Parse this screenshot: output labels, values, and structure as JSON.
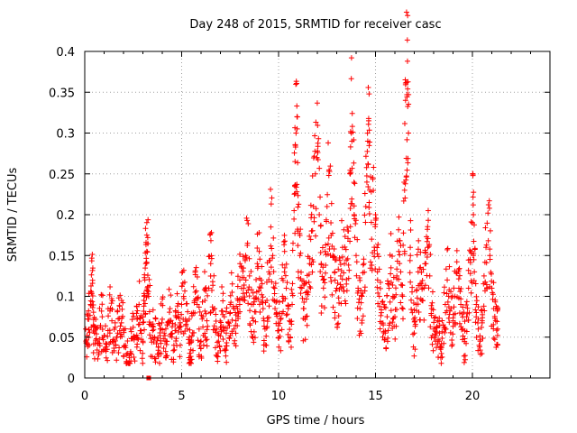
{
  "chart_data": {
    "type": "scatter",
    "title": "Day 248 of 2015, SRMTID for receiver casc",
    "xlabel": "GPS time / hours",
    "ylabel": "SRMTID / TECUs",
    "xlim": [
      0,
      24
    ],
    "ylim": [
      0,
      0.4
    ],
    "grid": true,
    "xticks": [
      0,
      5,
      10,
      15,
      20
    ],
    "xtick_labels": [
      "0",
      "5",
      "10",
      "15",
      "20"
    ],
    "yticks": [
      0,
      0.05,
      0.1,
      0.15,
      0.2,
      0.25,
      0.3,
      0.35,
      0.4
    ],
    "ytick_labels": [
      "0",
      "0.05",
      "0.1",
      "0.15",
      "0.2",
      "0.25",
      "0.3",
      "0.35",
      "0.4"
    ],
    "marker": "+",
    "color": "#ff0000",
    "baseline_marker": {
      "x": 3.3,
      "y": 0
    },
    "series": [
      {
        "name": "SRMTID",
        "points": [
          [
            0.05,
            0.06
          ],
          [
            0.12,
            0.052
          ],
          [
            0.2,
            0.072
          ],
          [
            0.3,
            0.09
          ],
          [
            0.35,
            0.105
          ],
          [
            0.4,
            0.116
          ],
          [
            0.45,
            0.065
          ],
          [
            0.5,
            0.055
          ],
          [
            0.6,
            0.048
          ],
          [
            0.7,
            0.043
          ],
          [
            0.8,
            0.062
          ],
          [
            0.9,
            0.075
          ],
          [
            1.0,
            0.052
          ],
          [
            1.1,
            0.035
          ],
          [
            1.2,
            0.058
          ],
          [
            1.3,
            0.082
          ],
          [
            1.4,
            0.07
          ],
          [
            1.5,
            0.045
          ],
          [
            1.6,
            0.04
          ],
          [
            1.7,
            0.055
          ],
          [
            1.8,
            0.088
          ],
          [
            1.9,
            0.095
          ],
          [
            2.0,
            0.06
          ],
          [
            2.1,
            0.04
          ],
          [
            2.2,
            0.03
          ],
          [
            2.3,
            0.025
          ],
          [
            2.4,
            0.048
          ],
          [
            2.5,
            0.062
          ],
          [
            2.6,
            0.05
          ],
          [
            2.7,
            0.072
          ],
          [
            2.8,
            0.09
          ],
          [
            2.9,
            0.058
          ],
          [
            3.0,
            0.045
          ],
          [
            3.05,
            0.095
          ],
          [
            3.1,
            0.12
          ],
          [
            3.15,
            0.14
          ],
          [
            3.2,
            0.155
          ],
          [
            3.25,
            0.172
          ],
          [
            3.3,
            0.1
          ],
          [
            3.4,
            0.065
          ],
          [
            3.5,
            0.058
          ],
          [
            3.6,
            0.05
          ],
          [
            3.7,
            0.042
          ],
          [
            3.8,
            0.038
          ],
          [
            3.9,
            0.06
          ],
          [
            4.0,
            0.072
          ],
          [
            4.1,
            0.055
          ],
          [
            4.2,
            0.045
          ],
          [
            4.3,
            0.068
          ],
          [
            4.4,
            0.085
          ],
          [
            4.5,
            0.05
          ],
          [
            4.6,
            0.04
          ],
          [
            4.7,
            0.058
          ],
          [
            4.8,
            0.075
          ],
          [
            4.9,
            0.062
          ],
          [
            5.0,
            0.09
          ],
          [
            5.1,
            0.1
          ],
          [
            5.2,
            0.072
          ],
          [
            5.3,
            0.06
          ],
          [
            5.4,
            0.05
          ],
          [
            5.45,
            0.022
          ],
          [
            5.5,
            0.045
          ],
          [
            5.6,
            0.08
          ],
          [
            5.7,
            0.105
          ],
          [
            5.8,
            0.09
          ],
          [
            5.9,
            0.06
          ],
          [
            6.0,
            0.045
          ],
          [
            6.1,
            0.075
          ],
          [
            6.2,
            0.095
          ],
          [
            6.3,
            0.07
          ],
          [
            6.4,
            0.11
          ],
          [
            6.5,
            0.14
          ],
          [
            6.6,
            0.118
          ],
          [
            6.7,
            0.085
          ],
          [
            6.8,
            0.06
          ],
          [
            6.9,
            0.045
          ],
          [
            7.0,
            0.062
          ],
          [
            7.1,
            0.082
          ],
          [
            7.2,
            0.075
          ],
          [
            7.3,
            0.055
          ],
          [
            7.4,
            0.068
          ],
          [
            7.5,
            0.09
          ],
          [
            7.6,
            0.105
          ],
          [
            7.7,
            0.085
          ],
          [
            7.8,
            0.07
          ],
          [
            7.9,
            0.095
          ],
          [
            8.0,
            0.12
          ],
          [
            8.1,
            0.135
          ],
          [
            8.2,
            0.11
          ],
          [
            8.3,
            0.15
          ],
          [
            8.4,
            0.165
          ],
          [
            8.5,
            0.125
          ],
          [
            8.6,
            0.09
          ],
          [
            8.7,
            0.07
          ],
          [
            8.8,
            0.098
          ],
          [
            8.9,
            0.14
          ],
          [
            9.0,
            0.155
          ],
          [
            9.1,
            0.12
          ],
          [
            9.2,
            0.085
          ],
          [
            9.3,
            0.06
          ],
          [
            9.4,
            0.095
          ],
          [
            9.5,
            0.13
          ],
          [
            9.6,
            0.185
          ],
          [
            9.7,
            0.15
          ],
          [
            9.8,
            0.11
          ],
          [
            9.9,
            0.08
          ],
          [
            10.0,
            0.058
          ],
          [
            10.1,
            0.072
          ],
          [
            10.2,
            0.1
          ],
          [
            10.3,
            0.13
          ],
          [
            10.4,
            0.11
          ],
          [
            10.5,
            0.085
          ],
          [
            10.6,
            0.05
          ],
          [
            10.7,
            0.09
          ],
          [
            10.8,
            0.205
          ],
          [
            10.85,
            0.265
          ],
          [
            10.9,
            0.3
          ],
          [
            10.95,
            0.32
          ],
          [
            11.0,
            0.18
          ],
          [
            11.1,
            0.15
          ],
          [
            11.2,
            0.11
          ],
          [
            11.3,
            0.085
          ],
          [
            11.4,
            0.075
          ],
          [
            11.5,
            0.102
          ],
          [
            11.6,
            0.14
          ],
          [
            11.7,
            0.18
          ],
          [
            11.8,
            0.21
          ],
          [
            11.9,
            0.25
          ],
          [
            12.0,
            0.278
          ],
          [
            12.1,
            0.2
          ],
          [
            12.2,
            0.14
          ],
          [
            12.3,
            0.12
          ],
          [
            12.4,
            0.155
          ],
          [
            12.5,
            0.21
          ],
          [
            12.6,
            0.253
          ],
          [
            12.7,
            0.19
          ],
          [
            12.8,
            0.15
          ],
          [
            12.9,
            0.13
          ],
          [
            13.0,
            0.11
          ],
          [
            13.1,
            0.098
          ],
          [
            13.2,
            0.125
          ],
          [
            13.3,
            0.16
          ],
          [
            13.4,
            0.14
          ],
          [
            13.5,
            0.115
          ],
          [
            13.6,
            0.18
          ],
          [
            13.7,
            0.25
          ],
          [
            13.75,
            0.3
          ],
          [
            13.8,
            0.324
          ],
          [
            13.9,
            0.2
          ],
          [
            14.0,
            0.15
          ],
          [
            14.1,
            0.11
          ],
          [
            14.2,
            0.085
          ],
          [
            14.3,
            0.1
          ],
          [
            14.4,
            0.14
          ],
          [
            14.5,
            0.21
          ],
          [
            14.6,
            0.29
          ],
          [
            14.65,
            0.315
          ],
          [
            14.7,
            0.23
          ],
          [
            14.8,
            0.17
          ],
          [
            14.9,
            0.258
          ],
          [
            15.0,
            0.2
          ],
          [
            15.1,
            0.13
          ],
          [
            15.2,
            0.1
          ],
          [
            15.3,
            0.08
          ],
          [
            15.4,
            0.065
          ],
          [
            15.5,
            0.055
          ],
          [
            15.6,
            0.075
          ],
          [
            15.7,
            0.11
          ],
          [
            15.8,
            0.135
          ],
          [
            15.9,
            0.1
          ],
          [
            16.0,
            0.075
          ],
          [
            16.1,
            0.125
          ],
          [
            16.2,
            0.155
          ],
          [
            16.3,
            0.13
          ],
          [
            16.4,
            0.1
          ],
          [
            16.5,
            0.23
          ],
          [
            16.55,
            0.34
          ],
          [
            16.6,
            0.362
          ],
          [
            16.65,
            0.388
          ],
          [
            16.7,
            0.3
          ],
          [
            16.8,
            0.15
          ],
          [
            16.9,
            0.08
          ],
          [
            17.0,
            0.055
          ],
          [
            17.1,
            0.09
          ],
          [
            17.2,
            0.13
          ],
          [
            17.3,
            0.115
          ],
          [
            17.4,
            0.095
          ],
          [
            17.5,
            0.11
          ],
          [
            17.6,
            0.14
          ],
          [
            17.7,
            0.16
          ],
          [
            17.8,
            0.125
          ],
          [
            17.9,
            0.085
          ],
          [
            18.0,
            0.06
          ],
          [
            18.1,
            0.045
          ],
          [
            18.2,
            0.07
          ],
          [
            18.3,
            0.055
          ],
          [
            18.4,
            0.03
          ],
          [
            18.5,
            0.065
          ],
          [
            18.6,
            0.09
          ],
          [
            18.7,
            0.12
          ],
          [
            18.8,
            0.108
          ],
          [
            18.9,
            0.085
          ],
          [
            19.0,
            0.07
          ],
          [
            19.1,
            0.1
          ],
          [
            19.2,
            0.128
          ],
          [
            19.3,
            0.11
          ],
          [
            19.4,
            0.09
          ],
          [
            19.5,
            0.06
          ],
          [
            19.6,
            0.048
          ],
          [
            19.7,
            0.075
          ],
          [
            19.8,
            0.11
          ],
          [
            19.9,
            0.155
          ],
          [
            20.0,
            0.19
          ],
          [
            20.05,
            0.2
          ],
          [
            20.1,
            0.13
          ],
          [
            20.2,
            0.09
          ],
          [
            20.3,
            0.06
          ],
          [
            20.4,
            0.045
          ],
          [
            20.5,
            0.07
          ],
          [
            20.6,
            0.125
          ],
          [
            20.7,
            0.16
          ],
          [
            20.8,
            0.202
          ],
          [
            20.9,
            0.15
          ],
          [
            21.0,
            0.11
          ],
          [
            21.1,
            0.085
          ],
          [
            21.2,
            0.07
          ],
          [
            21.3,
            0.06
          ]
        ]
      }
    ]
  }
}
